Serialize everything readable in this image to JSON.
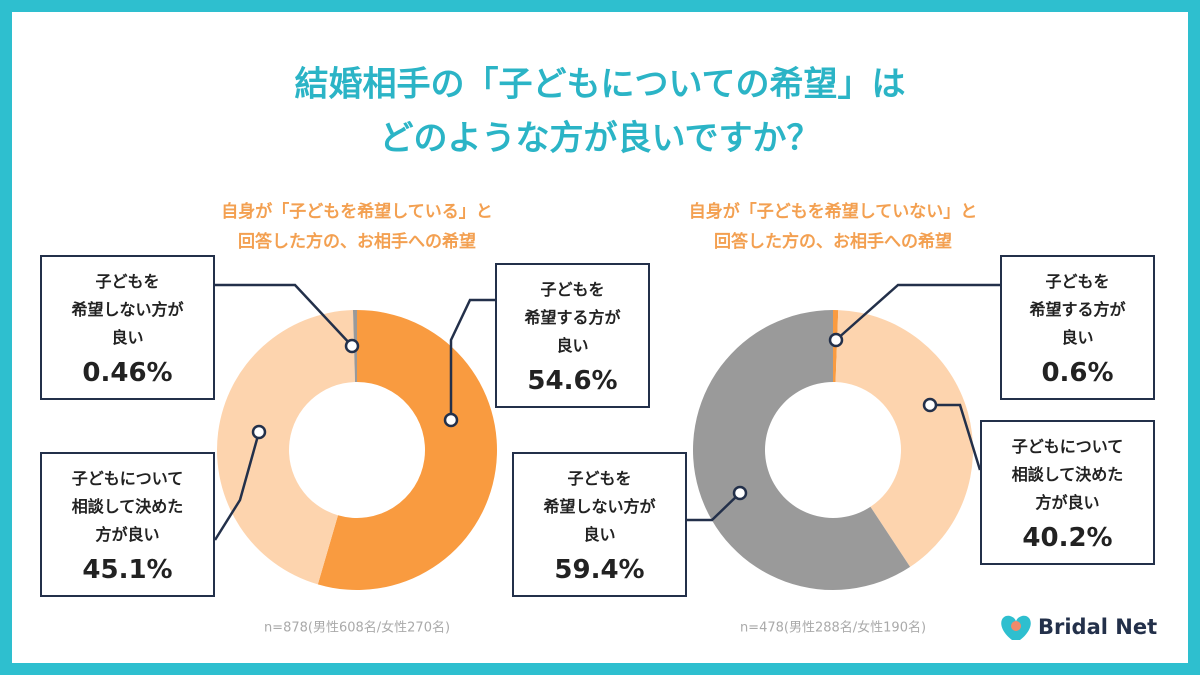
{
  "title": [
    "結婚相手の「子どもについての希望」は",
    "どのような方が良いですか？"
  ],
  "brand": "Bridal Net",
  "chart_data": [
    {
      "type": "pie",
      "title": [
        "自身が「子どもを希望している」と",
        "回答した方の、お相手への希望"
      ],
      "categories": [
        "子どもを\n希望する方が\n良い",
        "子どもについて\n相談して決めた\n方が良い",
        "子どもを\n希望しない方が\n良い"
      ],
      "values": [
        54.6,
        45.1,
        0.46
      ],
      "value_labels": [
        "54.6%",
        "45.1%",
        "0.46%"
      ],
      "colors": [
        "#f99b40",
        "#fdd4ae",
        "#9a9a9a"
      ],
      "note": "n=878(男性608名/女性270名)"
    },
    {
      "type": "pie",
      "title": [
        "自身が「子どもを希望していない」と",
        "回答した方の、お相手への希望"
      ],
      "categories": [
        "子どもを\n希望する方が\n良い",
        "子どもについて\n相談して決めた\n方が良い",
        "子どもを\n希望しない方が\n良い"
      ],
      "values": [
        0.6,
        40.2,
        59.4
      ],
      "value_labels": [
        "0.6%",
        "40.2%",
        "59.4%"
      ],
      "colors": [
        "#f99b40",
        "#fdd4ae",
        "#9a9a9a"
      ],
      "note": "n=478(男性288名/女性190名)"
    }
  ]
}
